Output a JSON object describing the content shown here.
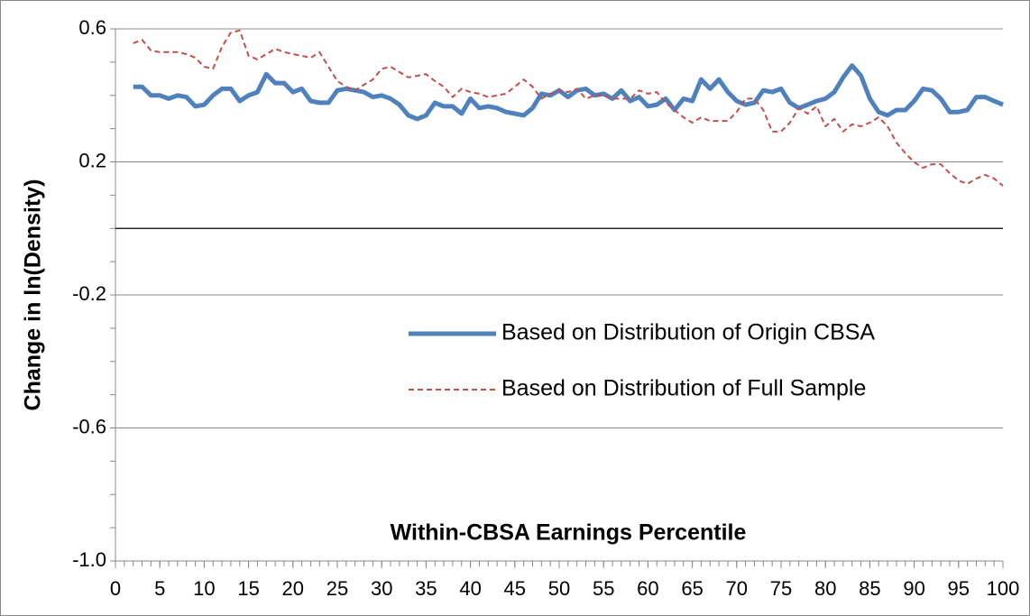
{
  "chart_data": {
    "type": "line",
    "x_label": "Within-CBSA Earnings Percentile",
    "y_label": "Change in ln(Density)",
    "x": [
      2,
      3,
      4,
      5,
      6,
      7,
      8,
      9,
      10,
      11,
      12,
      13,
      14,
      15,
      16,
      17,
      18,
      19,
      20,
      21,
      22,
      23,
      24,
      25,
      26,
      27,
      28,
      29,
      30,
      31,
      32,
      33,
      34,
      35,
      36,
      37,
      38,
      39,
      40,
      41,
      42,
      43,
      44,
      45,
      46,
      47,
      48,
      49,
      50,
      51,
      52,
      53,
      54,
      55,
      56,
      57,
      58,
      59,
      60,
      61,
      62,
      63,
      64,
      65,
      66,
      67,
      68,
      69,
      70,
      71,
      72,
      73,
      74,
      75,
      76,
      77,
      78,
      79,
      80,
      81,
      82,
      83,
      84,
      85,
      86,
      87,
      88,
      89,
      90,
      91,
      92,
      93,
      94,
      95,
      96,
      97,
      98,
      99,
      100
    ],
    "series": [
      {
        "name": "Based on Distribution of Origin CBSA",
        "color": "#4f81bd",
        "dash": false,
        "values": [
          0.426,
          0.426,
          0.4,
          0.4,
          0.39,
          0.4,
          0.395,
          0.367,
          0.372,
          0.4,
          0.42,
          0.42,
          0.383,
          0.4,
          0.41,
          0.464,
          0.437,
          0.437,
          0.41,
          0.42,
          0.383,
          0.378,
          0.378,
          0.415,
          0.42,
          0.415,
          0.41,
          0.395,
          0.4,
          0.39,
          0.372,
          0.34,
          0.329,
          0.34,
          0.378,
          0.367,
          0.367,
          0.345,
          0.39,
          0.362,
          0.367,
          0.362,
          0.35,
          0.345,
          0.34,
          0.362,
          0.405,
          0.4,
          0.415,
          0.395,
          0.415,
          0.42,
          0.4,
          0.405,
          0.39,
          0.415,
          0.383,
          0.395,
          0.367,
          0.372,
          0.39,
          0.356,
          0.39,
          0.383,
          0.448,
          0.42,
          0.448,
          0.41,
          0.383,
          0.372,
          0.378,
          0.415,
          0.41,
          0.42,
          0.378,
          0.362,
          0.372,
          0.383,
          0.39,
          0.41,
          0.454,
          0.49,
          0.459,
          0.39,
          0.35,
          0.34,
          0.356,
          0.356,
          0.383,
          0.42,
          0.415,
          0.39,
          0.35,
          0.35,
          0.356,
          0.395,
          0.395,
          0.383,
          0.372
        ]
      },
      {
        "name": "Based on Distribution of Full Sample",
        "color": "#c0504d",
        "dash": true,
        "values": [
          0.557,
          0.567,
          0.535,
          0.53,
          0.53,
          0.53,
          0.524,
          0.513,
          0.486,
          0.48,
          0.546,
          0.589,
          0.595,
          0.519,
          0.508,
          0.524,
          0.54,
          0.53,
          0.524,
          0.519,
          0.513,
          0.53,
          0.486,
          0.443,
          0.426,
          0.415,
          0.432,
          0.448,
          0.48,
          0.486,
          0.47,
          0.454,
          0.459,
          0.464,
          0.443,
          0.426,
          0.395,
          0.42,
          0.41,
          0.405,
          0.395,
          0.4,
          0.405,
          0.426,
          0.448,
          0.426,
          0.39,
          0.405,
          0.415,
          0.41,
          0.42,
          0.39,
          0.4,
          0.4,
          0.39,
          0.39,
          0.39,
          0.415,
          0.405,
          0.41,
          0.378,
          0.356,
          0.334,
          0.318,
          0.334,
          0.323,
          0.323,
          0.323,
          0.35,
          0.39,
          0.39,
          0.356,
          0.291,
          0.291,
          0.318,
          0.362,
          0.345,
          0.367,
          0.307,
          0.329,
          0.291,
          0.313,
          0.307,
          0.318,
          0.334,
          0.307,
          0.258,
          0.226,
          0.199,
          0.182,
          0.193,
          0.193,
          0.166,
          0.144,
          0.134,
          0.15,
          0.161,
          0.15,
          0.128
        ]
      }
    ],
    "xlim": [
      0,
      100
    ],
    "xticks": [
      0,
      5,
      10,
      15,
      20,
      25,
      30,
      35,
      40,
      45,
      50,
      55,
      60,
      65,
      70,
      75,
      80,
      85,
      90,
      95,
      100
    ],
    "ylim": [
      -1,
      0.6
    ],
    "yticks": [
      {
        "value": -1,
        "label": "-1.0"
      },
      -0.6,
      -0.2,
      0.2,
      0.6
    ],
    "grid": true
  }
}
